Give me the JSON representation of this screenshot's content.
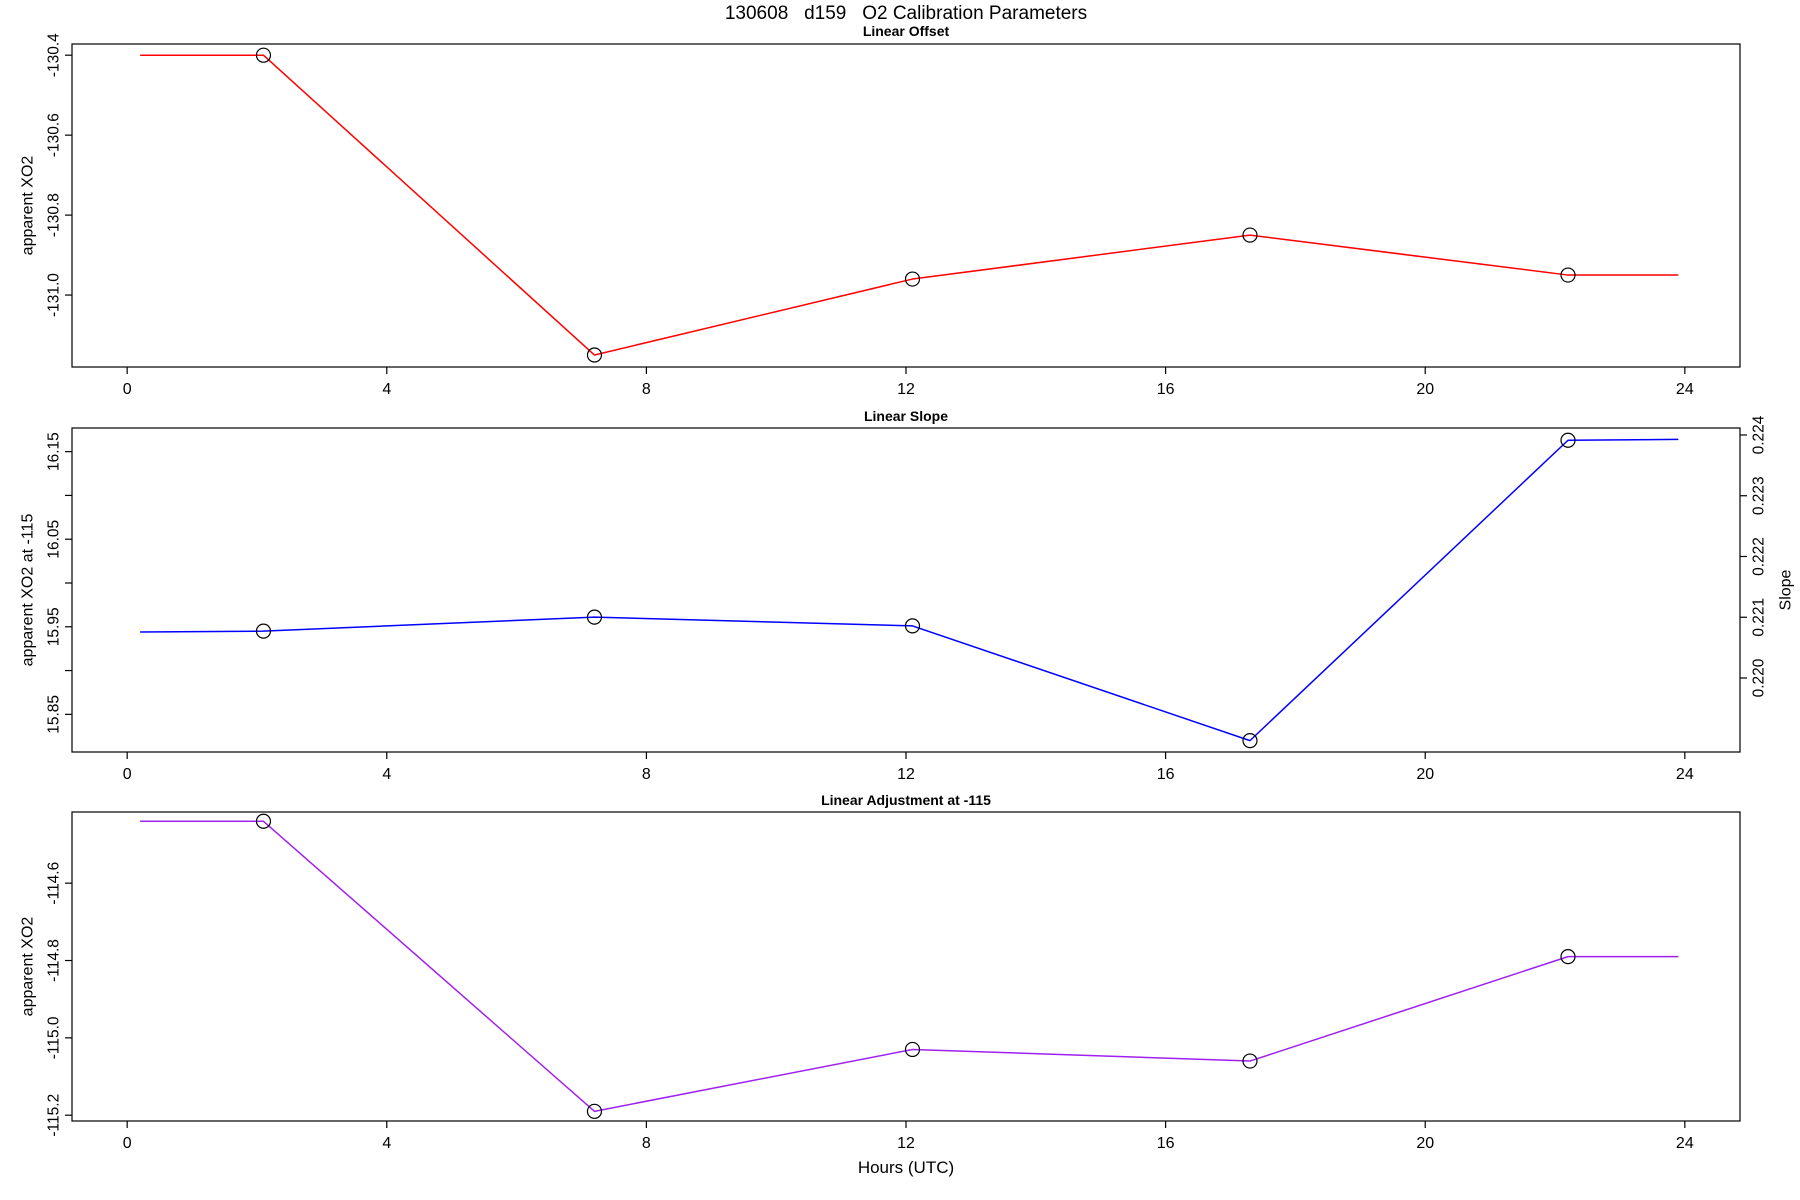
{
  "title": "130608   d159   O2 Calibration Parameters",
  "xlabel": "Hours (UTC)",
  "colors": {
    "background": "#ffffff",
    "axis": "#000000",
    "marker": "#000000",
    "offset_line": "#ff0000",
    "slope_line": "#0000ff",
    "adjustment_line": "#a020f0"
  },
  "chart_data": [
    {
      "type": "line",
      "title": "Linear Offset",
      "ylabel": "apparent XO2",
      "line_color": "#ff0000",
      "xlim": [
        -0.85,
        24.85
      ],
      "ylim": [
        -131.18,
        -130.372
      ],
      "xticks": [
        0,
        4,
        8,
        12,
        16,
        20,
        24
      ],
      "xtick_labels": [
        "0",
        "4",
        "8",
        "12",
        "16",
        "20",
        "24"
      ],
      "yticks": [
        -130.4,
        -130.6,
        -130.8,
        -131.0
      ],
      "ytick_labels": [
        "-130.4",
        "-130.6",
        "-130.8",
        "-131.0"
      ],
      "x": [
        0.2,
        2.1,
        7.2,
        12.1,
        17.3,
        22.2,
        23.9
      ],
      "y": [
        -130.4,
        -130.4,
        -131.15,
        -130.96,
        -130.85,
        -130.95,
        -130.95
      ],
      "marker_indices": [
        1,
        2,
        3,
        4,
        5
      ]
    },
    {
      "type": "line",
      "title": "Linear Slope",
      "ylabel": "apparent XO2 at -115",
      "ylabel_right": "Slope",
      "line_color": "#0000ff",
      "xlim": [
        -0.85,
        24.85
      ],
      "ylim": [
        15.807,
        16.177
      ],
      "xticks": [
        0,
        4,
        8,
        12,
        16,
        20,
        24
      ],
      "xtick_labels": [
        "0",
        "4",
        "8",
        "12",
        "16",
        "20",
        "24"
      ],
      "yticks": [
        15.85,
        15.9,
        15.95,
        16.0,
        16.05,
        16.1,
        16.15
      ],
      "ytick_labels": [
        "15.85",
        "",
        "15.95",
        "",
        "16.05",
        "",
        "16.15"
      ],
      "ylim_right": [
        0.218782,
        0.224115
      ],
      "yticks_right": [
        0.22,
        0.221,
        0.222,
        0.223,
        0.224
      ],
      "ytick_labels_right": [
        "0.220",
        "0.221",
        "0.222",
        "0.223",
        "0.224"
      ],
      "x": [
        0.2,
        2.1,
        7.2,
        12.1,
        17.3,
        22.2,
        23.9
      ],
      "y": [
        15.944,
        15.945,
        15.961,
        15.951,
        15.82,
        16.163,
        16.164
      ],
      "marker_indices": [
        1,
        2,
        3,
        4,
        5
      ]
    },
    {
      "type": "line",
      "title": "Linear Adjustment at -115",
      "ylabel": "apparent XO2",
      "line_color": "#a020f0",
      "xlim": [
        -0.85,
        24.85
      ],
      "ylim": [
        -115.215,
        -114.416
      ],
      "xticks": [
        0,
        4,
        8,
        12,
        16,
        20,
        24
      ],
      "xtick_labels": [
        "0",
        "4",
        "8",
        "12",
        "16",
        "20",
        "24"
      ],
      "yticks": [
        -114.6,
        -114.8,
        -115.0,
        -115.2
      ],
      "ytick_labels": [
        "-114.6",
        "-114.8",
        "-115.0",
        "-115.2"
      ],
      "x": [
        0.2,
        2.1,
        7.2,
        12.1,
        17.3,
        22.2,
        23.9
      ],
      "y": [
        -114.44,
        -114.44,
        -115.19,
        -115.03,
        -115.06,
        -114.79,
        -114.79
      ],
      "marker_indices": [
        1,
        2,
        3,
        4,
        5
      ]
    }
  ]
}
